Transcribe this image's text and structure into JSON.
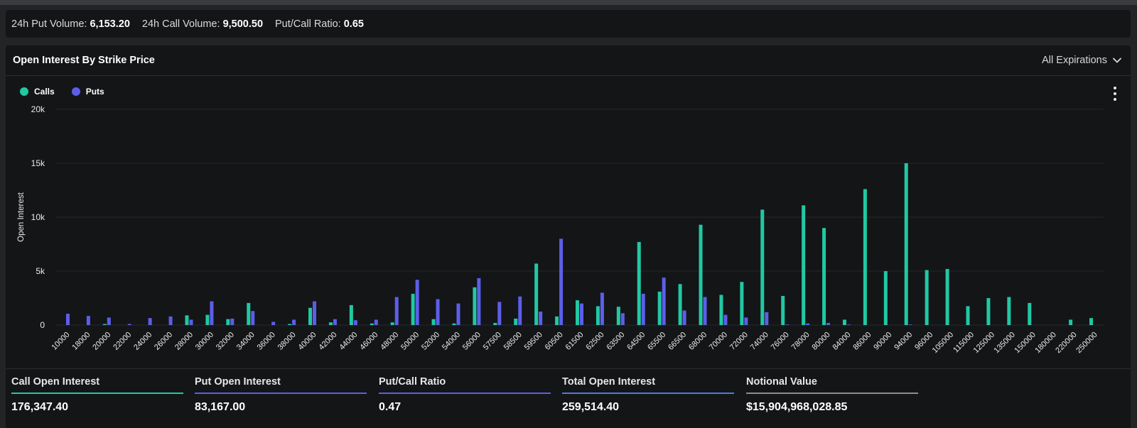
{
  "summary": {
    "put_volume_label": "24h Put Volume:",
    "put_volume_value": "6,153.20",
    "call_volume_label": "24h Call Volume:",
    "call_volume_value": "9,500.50",
    "ratio_label": "Put/Call Ratio:",
    "ratio_value": "0.65"
  },
  "panel": {
    "title": "Open Interest By Strike Price",
    "expiration_select": "All Expirations"
  },
  "legend": {
    "calls": "Calls",
    "puts": "Puts"
  },
  "colors": {
    "calls": "#21c8a3",
    "puts": "#5b5fe8",
    "total": "#4f7bd9",
    "notional": "#8a8d93",
    "background": "#141517"
  },
  "icons": {
    "expiration_select": "chevron-down-icon",
    "chart_menu": "more-vertical-icon"
  },
  "stats": [
    {
      "label": "Call Open Interest",
      "value": "176,347.40",
      "color": "#21c8a3"
    },
    {
      "label": "Put Open Interest",
      "value": "83,167.00",
      "color": "#5b5fe8"
    },
    {
      "label": "Put/Call Ratio",
      "value": "0.47",
      "color": "#5b5fe8"
    },
    {
      "label": "Total Open Interest",
      "value": "259,514.40",
      "color": "#4f7bd9"
    },
    {
      "label": "Notional Value",
      "value": "$15,904,968,028.85",
      "color": "#8a8d93"
    }
  ],
  "chart_data": {
    "type": "bar",
    "title": "",
    "xlabel": "",
    "ylabel": "Open Interest",
    "ylim": [
      0,
      20000
    ],
    "yticks": [
      "0",
      "5k",
      "10k",
      "15k",
      "20k"
    ],
    "legend_position": "top-left",
    "grid": true,
    "categories": [
      "10000",
      "18000",
      "20000",
      "22000",
      "24000",
      "26000",
      "28000",
      "30000",
      "32000",
      "34000",
      "36000",
      "38000",
      "40000",
      "42000",
      "44000",
      "46000",
      "48000",
      "50000",
      "52000",
      "54000",
      "56000",
      "57500",
      "58500",
      "59500",
      "60500",
      "61500",
      "62500",
      "63500",
      "64500",
      "65500",
      "66500",
      "68000",
      "70000",
      "72000",
      "74000",
      "76000",
      "78000",
      "80000",
      "84000",
      "86000",
      "90000",
      "94000",
      "96000",
      "105000",
      "115000",
      "125000",
      "135000",
      "150000",
      "180000",
      "220000",
      "250000"
    ],
    "series": [
      {
        "name": "Calls",
        "values": [
          0,
          0,
          100,
          0,
          0,
          0,
          900,
          950,
          550,
          2050,
          0,
          100,
          1600,
          250,
          1850,
          150,
          250,
          2900,
          550,
          150,
          3500,
          200,
          600,
          5700,
          800,
          2300,
          1750,
          1700,
          7700,
          3100,
          3800,
          9300,
          2800,
          4000,
          10700,
          2700,
          11100,
          9000,
          500,
          12600,
          5000,
          15000,
          5100,
          5200,
          1750,
          2500,
          2600,
          2050,
          0,
          500,
          650
        ]
      },
      {
        "name": "Puts",
        "values": [
          1050,
          850,
          700,
          100,
          650,
          800,
          500,
          2200,
          600,
          1300,
          300,
          500,
          2200,
          550,
          450,
          500,
          2600,
          4200,
          2400,
          2000,
          4350,
          2150,
          2650,
          1250,
          8000,
          2000,
          3000,
          1100,
          2900,
          4400,
          1350,
          2600,
          950,
          700,
          1200,
          50,
          150,
          200,
          50,
          0,
          0,
          50,
          0,
          0,
          0,
          0,
          0,
          0,
          0,
          0,
          0
        ]
      }
    ]
  }
}
